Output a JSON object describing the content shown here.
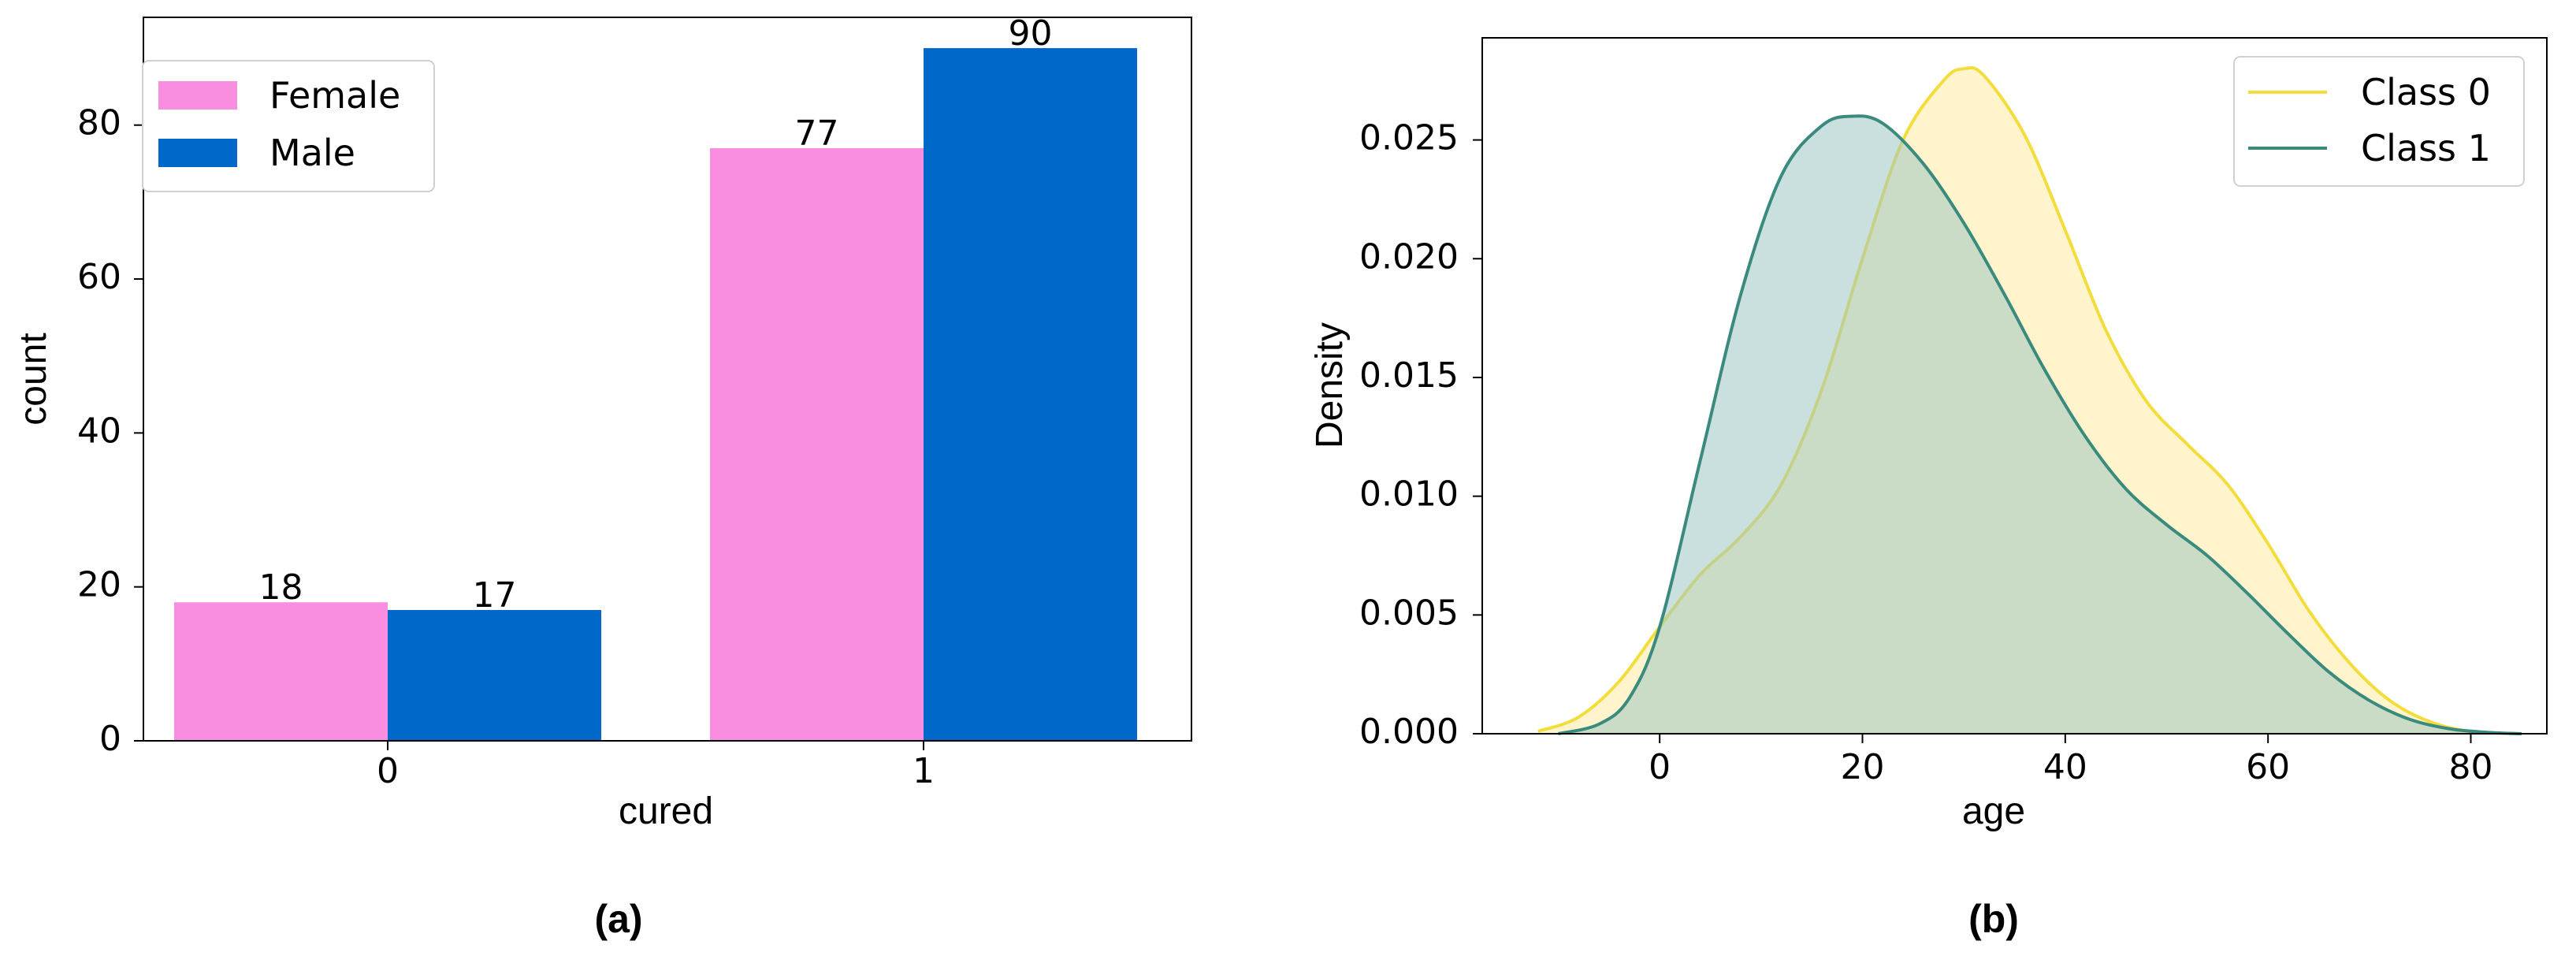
{
  "chart_data": [
    {
      "type": "bar",
      "caption": "(a)",
      "categories": [
        "0",
        "1"
      ],
      "series": [
        {
          "name": "Female",
          "values": [
            18,
            77
          ],
          "color": "#f98ee0"
        },
        {
          "name": "Male",
          "values": [
            17,
            90
          ],
          "color": "#0068c9"
        }
      ],
      "data_labels": [
        "18",
        "77",
        "17",
        "90"
      ],
      "xlabel": "cured",
      "ylabel": "count",
      "ylim": [
        0,
        94
      ],
      "yticks": [
        "0",
        "20",
        "40",
        "60",
        "80"
      ],
      "legend": "top-left",
      "grid": false
    },
    {
      "type": "area",
      "caption": "(b)",
      "xlabel": "age",
      "ylabel": "Density",
      "xlim": [
        -17.5,
        87.5
      ],
      "ylim": [
        0,
        0.0293
      ],
      "xticks": [
        "0",
        "20",
        "40",
        "60",
        "80"
      ],
      "yticks": [
        "0.000",
        "0.005",
        "0.010",
        "0.015",
        "0.020",
        "0.025"
      ],
      "legend": "top-right",
      "grid": false,
      "series": [
        {
          "name": "Class 0",
          "color": "#f2dd3d",
          "fill": "#fff2c2",
          "x": [
            -12,
            -8,
            -4,
            0,
            4,
            8,
            12,
            16,
            20,
            24,
            28,
            30,
            32,
            36,
            40,
            44,
            48,
            52,
            56,
            60,
            64,
            68,
            72,
            76,
            80,
            85
          ],
          "y": [
            0.0001,
            0.0007,
            0.0022,
            0.0045,
            0.0067,
            0.0083,
            0.0105,
            0.0145,
            0.02,
            0.025,
            0.0275,
            0.028,
            0.0277,
            0.0252,
            0.0212,
            0.017,
            0.014,
            0.0122,
            0.0105,
            0.008,
            0.0052,
            0.003,
            0.0014,
            0.0005,
            0.0001,
            0.0
          ]
        },
        {
          "name": "Class 1",
          "color": "#3a8a7e",
          "fill": "#9fc7c2",
          "x": [
            -10,
            -6,
            -3,
            0,
            4,
            8,
            12,
            16,
            19,
            22,
            26,
            30,
            34,
            38,
            42,
            46,
            50,
            54,
            58,
            62,
            66,
            70,
            74,
            78,
            82,
            85
          ],
          "y": [
            0.0,
            0.0004,
            0.0015,
            0.0045,
            0.0115,
            0.0185,
            0.0235,
            0.0256,
            0.026,
            0.0257,
            0.024,
            0.0215,
            0.0185,
            0.0153,
            0.0125,
            0.0103,
            0.0088,
            0.0075,
            0.0059,
            0.0042,
            0.0026,
            0.0014,
            0.0006,
            0.0002,
            5e-05,
            0.0
          ]
        }
      ]
    }
  ]
}
